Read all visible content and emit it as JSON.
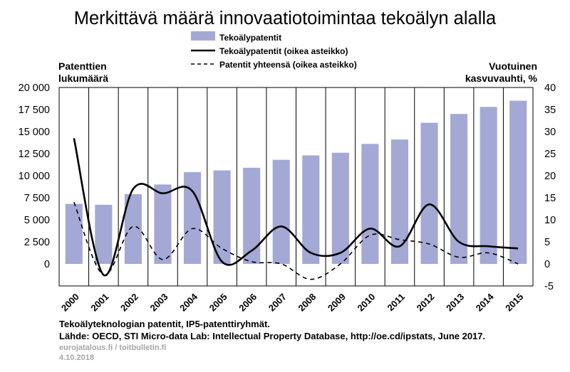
{
  "chart_data": {
    "type": "bar",
    "title": "Merkittävä määrä innovaatiotoimintaa tekoälyn alalla",
    "ylabel_left": [
      "Patenttien",
      "lukumäärä"
    ],
    "ylabel_right": [
      "Vuotuinen",
      "kasvuvauhti, %"
    ],
    "categories": [
      "2000",
      "2001",
      "2002",
      "2003",
      "2004",
      "2005",
      "2006",
      "2007",
      "2008",
      "2009",
      "2010",
      "2011",
      "2012",
      "2013",
      "2014",
      "2015"
    ],
    "ylim_left": [
      0,
      20000
    ],
    "left_ticks": [
      "20 000",
      "17 500",
      "15 000",
      "12 500",
      "10 000",
      "7 500",
      "5 000",
      "2 500",
      "0"
    ],
    "ylim_right": [
      -5,
      40
    ],
    "right_ticks": [
      "40",
      "35",
      "30",
      "25",
      "20",
      "15",
      "10",
      "5",
      "0",
      "-5"
    ],
    "grid": "vertical",
    "legend_position": "top-center",
    "series": [
      {
        "name": "Tekoälypatentit",
        "kind": "bar",
        "axis": "left",
        "color": "#a4a8d4",
        "values": [
          6800,
          6700,
          7900,
          9000,
          10400,
          10600,
          10900,
          11800,
          12300,
          12600,
          13600,
          14100,
          16000,
          17000,
          17800,
          18500
        ]
      },
      {
        "name": "Tekoälypatentit (oikea asteikko)",
        "kind": "line",
        "axis": "right",
        "color": "#000000",
        "values": [
          28.5,
          -2.5,
          17,
          16,
          16.5,
          0.5,
          3,
          8.5,
          2.5,
          2.5,
          8,
          4,
          13.5,
          5,
          4,
          3.5
        ]
      },
      {
        "name": "Patentit yhteensä (oikea asteikko)",
        "kind": "dashed",
        "axis": "right",
        "color": "#000000",
        "values": [
          14,
          -2.5,
          8.5,
          1,
          8,
          3.5,
          0.5,
          0,
          -3.5,
          0,
          6.5,
          5.5,
          4.5,
          1.5,
          2.5,
          0
        ]
      }
    ]
  },
  "notes": {
    "line1": "Tekoälyteknologian patentit, IP5-patenttiryhmät.",
    "line2": "Lähde: OECD, STI Micro-data Lab: Intellectual Property Database, http://oe.cd/ipstats, June 2017.",
    "line3": "eurojatalous.fi / toitbulletin.fi",
    "line4": "4.10.2018"
  }
}
